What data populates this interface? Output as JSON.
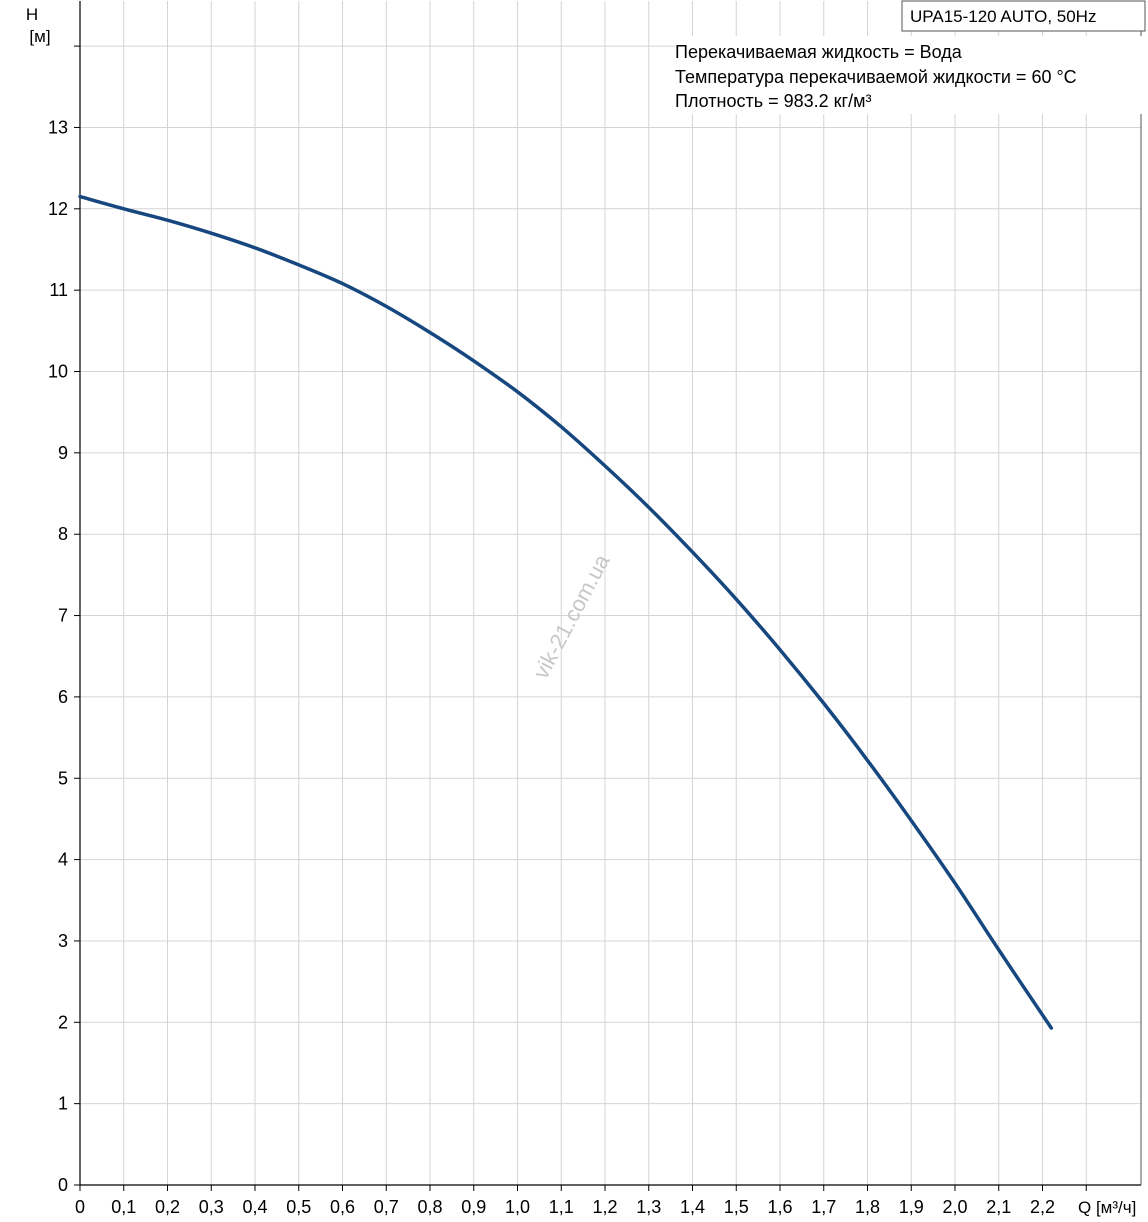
{
  "chart_data": {
    "type": "line",
    "model_label": "UPA15-120 AUTO, 50Hz",
    "info_lines": [
      "Перекачиваемая жидкость = Вода",
      "Температура перекачиваемой жидкости = 60 °C",
      "Плотность = 983.2 кг/м³"
    ],
    "y_axis": {
      "label_line1": "H",
      "label_line2": "[м]",
      "range": [
        0,
        14
      ],
      "tick_values": [
        0,
        1,
        2,
        3,
        4,
        5,
        6,
        7,
        8,
        9,
        10,
        11,
        12,
        13
      ],
      "tick_labels": [
        "0",
        "1",
        "2",
        "3",
        "4",
        "5",
        "6",
        "7",
        "8",
        "9",
        "10",
        "11",
        "12",
        "13"
      ]
    },
    "x_axis": {
      "label": "Q [м³/ч]",
      "range": [
        0,
        2.4
      ],
      "tick_values": [
        0,
        0.1,
        0.2,
        0.3,
        0.4,
        0.5,
        0.6,
        0.7,
        0.8,
        0.9,
        1.0,
        1.1,
        1.2,
        1.3,
        1.4,
        1.5,
        1.6,
        1.7,
        1.8,
        1.9,
        2.0,
        2.1,
        2.2
      ],
      "tick_labels": [
        "0",
        "0,1",
        "0,2",
        "0,3",
        "0,4",
        "0,5",
        "0,6",
        "0,7",
        "0,8",
        "0,9",
        "1,0",
        "1,1",
        "1,2",
        "1,3",
        "1,4",
        "1,5",
        "1,6",
        "1,7",
        "1,8",
        "1,9",
        "2,0",
        "2,1",
        "2,2"
      ]
    },
    "grid": true,
    "series": [
      {
        "color": "#16477f",
        "points": [
          [
            0.0,
            12.15
          ],
          [
            0.1,
            12.0
          ],
          [
            0.2,
            11.86
          ],
          [
            0.3,
            11.7
          ],
          [
            0.4,
            11.52
          ],
          [
            0.5,
            11.31
          ],
          [
            0.6,
            11.08
          ],
          [
            0.7,
            10.8
          ],
          [
            0.8,
            10.48
          ],
          [
            0.9,
            10.13
          ],
          [
            1.0,
            9.75
          ],
          [
            1.1,
            9.32
          ],
          [
            1.2,
            8.84
          ],
          [
            1.3,
            8.33
          ],
          [
            1.4,
            7.78
          ],
          [
            1.5,
            7.2
          ],
          [
            1.6,
            6.58
          ],
          [
            1.7,
            5.92
          ],
          [
            1.8,
            5.22
          ],
          [
            1.9,
            4.48
          ],
          [
            2.0,
            3.71
          ],
          [
            2.1,
            2.89
          ],
          [
            2.22,
            1.93
          ]
        ]
      }
    ],
    "watermark": "vik-21.com.ua"
  }
}
